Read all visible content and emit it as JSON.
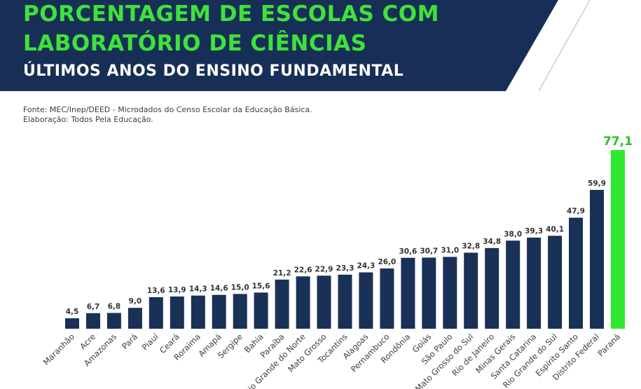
{
  "header": {
    "title_line_1": "PORCENTAGEM DE ESCOLAS COM",
    "title_line_2": "LABORATÓRIO DE CIÊNCIAS",
    "subtitle": "ÚLTIMOS ANOS DO ENSINO FUNDAMENTAL",
    "source_line_1": "Fonte: MEC/Inep/DEED - Microdados do Censo Escolar da Educação Básica.",
    "source_line_2": "Elaboração: Todos Pela Educação."
  },
  "colors": {
    "banner": "#172f56",
    "title_green": "#3ee33a",
    "bar_default": "#1a3157",
    "bar_highlight": "#30e830",
    "label_highlight": "#27c427",
    "text_dark": "#333333"
  },
  "chart_data": {
    "type": "bar",
    "title": "PORCENTAGEM DE ESCOLAS COM LABORATÓRIO DE CIÊNCIAS",
    "subtitle": "ÚLTIMOS ANOS DO ENSINO FUNDAMENTAL",
    "xlabel": "",
    "ylabel": "",
    "ylim": [
      0,
      77.1
    ],
    "grid": false,
    "highlight_category": "Paraná",
    "categories": [
      "Maranhão",
      "Acre",
      "Amazonas",
      "Pará",
      "Piauí",
      "Ceará",
      "Roraima",
      "Amapá",
      "Sergipe",
      "Bahia",
      "Paraíba",
      "Rio Grande do Norte",
      "Mato Grosso",
      "Tocantins",
      "Alagoas",
      "Pernambuco",
      "Rondônia",
      "Goiás",
      "São Paulo",
      "Mato Grosso do Sul",
      "Rio de Janeiro",
      "Minas Gerais",
      "Santa Catarina",
      "Rio Grande do Sul",
      "Espírito Santo",
      "Distrito Federal",
      "Paraná"
    ],
    "values": [
      4.5,
      6.7,
      6.8,
      9.0,
      13.6,
      13.9,
      14.3,
      14.6,
      15.0,
      15.6,
      21.2,
      22.6,
      22.9,
      23.3,
      24.3,
      26.0,
      30.6,
      30.7,
      31.0,
      32.8,
      34.8,
      38.0,
      39.3,
      40.1,
      47.9,
      59.9,
      77.1
    ],
    "value_labels": [
      "4,5",
      "6,7",
      "6,8",
      "9,0",
      "13,6",
      "13,9",
      "14,3",
      "14,6",
      "15,0",
      "15,6",
      "21,2",
      "22,6",
      "22,9",
      "23,3",
      "24,3",
      "26,0",
      "30,6",
      "30,7",
      "31,0",
      "32,8",
      "34,8",
      "38,0",
      "39,3",
      "40,1",
      "47,9",
      "59,9",
      "77,1"
    ]
  }
}
